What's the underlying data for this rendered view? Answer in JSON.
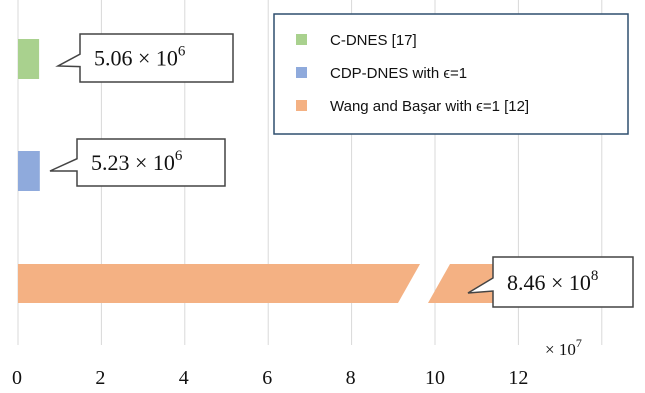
{
  "chart_data": {
    "type": "bar",
    "orientation": "horizontal",
    "axis_break": true,
    "grid": true,
    "legend_position": "top-right",
    "x_ticks": [
      "0",
      "2",
      "4",
      "6",
      "8",
      "10",
      "12"
    ],
    "x_multiplier": "× 10",
    "x_multiplier_exp": "7",
    "xlim": [
      0,
      14
    ],
    "series": [
      {
        "name": "C-DNES [17]",
        "value": 5060000,
        "color": "#a9d18e",
        "label_base": "5.06 × 10",
        "label_exp": "6"
      },
      {
        "name": "CDP-DNES with ϵ=1",
        "value": 5230000,
        "color": "#8faadc",
        "label_base": "5.23 × 10",
        "label_exp": "6"
      },
      {
        "name": "Wang and Başar with ϵ=1 [12]",
        "value": 846000000,
        "color": "#f4b183",
        "label_base": "8.46 × 10",
        "label_exp": "8"
      }
    ]
  }
}
